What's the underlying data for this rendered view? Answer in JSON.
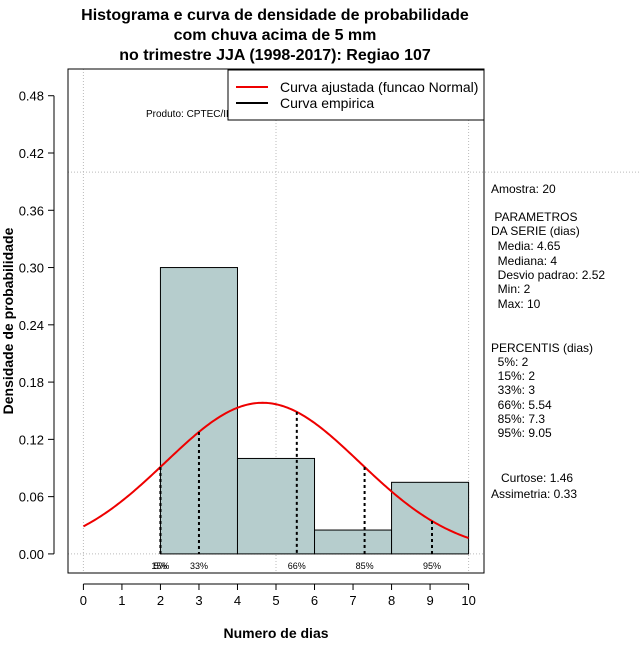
{
  "chart_data": {
    "type": "bar",
    "title_lines": [
      "Histograma e curva de densidade de probabilidade",
      "com chuva acima de 5 mm",
      "no trimestre JJA (1998-2017): Regiao 107"
    ],
    "xlabel": "Numero de dias",
    "ylabel": "Densidade de probabilidade",
    "xlim": [
      -0.4,
      10.4
    ],
    "ylim": [
      -0.02,
      0.508
    ],
    "x_ticks": [
      0,
      1,
      2,
      3,
      4,
      5,
      6,
      7,
      8,
      9,
      10
    ],
    "y_ticks": [
      0.0,
      0.06,
      0.12,
      0.18,
      0.24,
      0.3,
      0.36,
      0.42,
      0.48
    ],
    "y_tick_labels": [
      "0.00",
      "0.06",
      "0.12",
      "0.18",
      "0.24",
      "0.30",
      "0.36",
      "0.42",
      "0.48"
    ],
    "bins": [
      {
        "from": 2,
        "to": 4,
        "density": 0.3
      },
      {
        "from": 4,
        "to": 6,
        "density": 0.1
      },
      {
        "from": 6,
        "to": 8,
        "density": 0.025
      },
      {
        "from": 8,
        "to": 10,
        "density": 0.075
      }
    ],
    "normal_fit": {
      "name": "Curva ajustada (funcao Normal)",
      "mean": 4.65,
      "sd": 2.52,
      "x_from": 0,
      "x_to": 10,
      "color": "#ee0000"
    },
    "empirical_curve": {
      "name": "Curva empirica",
      "color": "#000000"
    },
    "percentile_lines": [
      {
        "label": "5%",
        "x": 2
      },
      {
        "label": "15%",
        "x": 2
      },
      {
        "label": "33%",
        "x": 3
      },
      {
        "label": "66%",
        "x": 5.54
      },
      {
        "label": "85%",
        "x": 7.3
      },
      {
        "label": "95%",
        "x": 9.05
      }
    ],
    "product_label": "Produto: CPTEC/INPE",
    "bar_color": "#b6cdcd"
  },
  "stats_panel": {
    "sample": "Amostra: 20",
    "params_title_1": " PARAMETROS",
    "params_title_2": "DA SERIE (dias)",
    "params": [
      "  Media: 4.65",
      "  Mediana: 4",
      "  Desvio padrao: 2.52",
      "  Min: 2",
      "  Max: 10"
    ],
    "percentis_title": "PERCENTIS (dias)",
    "percentis": [
      "  5%: 2",
      "  15%: 2",
      "  33%: 3",
      "  66%: 5.54",
      "  85%: 7.3",
      "  95%: 9.05"
    ],
    "curtose": "   Curtose: 1.46",
    "assimetria": "Assimetria: 0.33"
  }
}
